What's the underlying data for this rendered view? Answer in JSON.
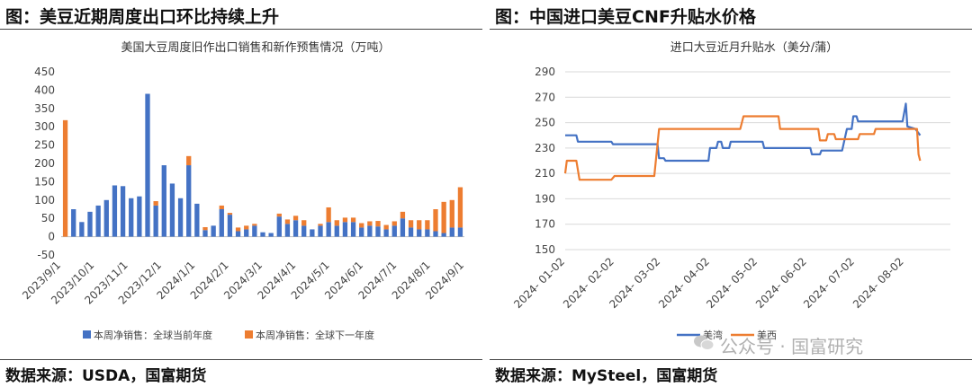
{
  "left": {
    "panel_title": "图：美豆近期周度出口环比持续上升",
    "source": "数据来源：USDA，国富期货",
    "chart_data": {
      "type": "bar",
      "stacked": true,
      "title": "美国大豆周度旧作出口销售和新作预售情况（万吨）",
      "ylim": [
        -50,
        450
      ],
      "yticks": [
        -50,
        0,
        50,
        100,
        150,
        200,
        250,
        300,
        350,
        400,
        450
      ],
      "grid": false,
      "legend_position": "bottom",
      "x_tick_labels": [
        "2023/9/1",
        "2023/10/1",
        "2023/11/1",
        "2023/12/1",
        "2024/1/1",
        "2024/2/1",
        "2024/3/1",
        "2024/4/1",
        "2024/5/1",
        "2024/6/1",
        "2024/7/1",
        "2024/8/1",
        "2024/9/1"
      ],
      "series": [
        {
          "name": "本周净销售：全球当前年度",
          "color": "#4472C4",
          "values": [
            0,
            75,
            40,
            68,
            85,
            100,
            140,
            138,
            105,
            110,
            390,
            85,
            195,
            145,
            105,
            195,
            90,
            18,
            30,
            75,
            60,
            15,
            20,
            30,
            12,
            10,
            55,
            35,
            45,
            30,
            20,
            30,
            40,
            30,
            40,
            40,
            25,
            30,
            28,
            20,
            30,
            50,
            25,
            20,
            20,
            15,
            10,
            25,
            25
          ]
        },
        {
          "name": "本周净销售：全球下一年度",
          "color": "#ED7D31",
          "values": [
            318,
            0,
            0,
            0,
            0,
            0,
            0,
            0,
            0,
            0,
            0,
            12,
            0,
            0,
            0,
            25,
            0,
            8,
            0,
            10,
            5,
            10,
            10,
            5,
            0,
            0,
            8,
            12,
            12,
            15,
            0,
            5,
            40,
            15,
            12,
            12,
            12,
            12,
            15,
            12,
            12,
            18,
            20,
            25,
            25,
            60,
            85,
            75,
            110
          ]
        }
      ]
    }
  },
  "right": {
    "panel_title": "图：中国进口美豆CNF升贴水价格",
    "source": "数据来源：MySteel，国富期货",
    "chart_data": {
      "type": "line",
      "title": "进口大豆近月升贴水（美分/蒲）",
      "ylim": [
        150,
        290
      ],
      "yticks": [
        150,
        170,
        190,
        210,
        230,
        250,
        270,
        290
      ],
      "grid": true,
      "legend_position": "bottom",
      "xlim": [
        "2024-01-02",
        "2024-08-31"
      ],
      "x_tick_labels": [
        "2024-01-02",
        "2024-02-02",
        "2024-03-02",
        "2024-04-02",
        "2024-05-02",
        "2024-06-02",
        "2024-07-02",
        "2024-08-02"
      ],
      "series": [
        {
          "name": "美湾",
          "color": "#4472C4",
          "points": [
            [
              "2024-01-02",
              240
            ],
            [
              "2024-01-09",
              240
            ],
            [
              "2024-01-10",
              235
            ],
            [
              "2024-01-31",
              235
            ],
            [
              "2024-02-01",
              233
            ],
            [
              "2024-02-29",
              233
            ],
            [
              "2024-03-01",
              222
            ],
            [
              "2024-03-04",
              222
            ],
            [
              "2024-03-05",
              220
            ],
            [
              "2024-04-01",
              220
            ],
            [
              "2024-04-02",
              230
            ],
            [
              "2024-04-06",
              230
            ],
            [
              "2024-04-07",
              235
            ],
            [
              "2024-04-09",
              235
            ],
            [
              "2024-04-10",
              230
            ],
            [
              "2024-04-14",
              230
            ],
            [
              "2024-04-15",
              235
            ],
            [
              "2024-05-05",
              235
            ],
            [
              "2024-05-06",
              230
            ],
            [
              "2024-06-04",
              230
            ],
            [
              "2024-06-05",
              225
            ],
            [
              "2024-06-10",
              225
            ],
            [
              "2024-06-11",
              228
            ],
            [
              "2024-06-24",
              228
            ],
            [
              "2024-06-27",
              245
            ],
            [
              "2024-06-30",
              245
            ],
            [
              "2024-07-01",
              255
            ],
            [
              "2024-07-03",
              255
            ],
            [
              "2024-07-04",
              251
            ],
            [
              "2024-07-31",
              251
            ],
            [
              "2024-08-01",
              251
            ],
            [
              "2024-08-03",
              265
            ],
            [
              "2024-08-04",
              247
            ],
            [
              "2024-08-09",
              245
            ],
            [
              "2024-08-12",
              240
            ]
          ]
        },
        {
          "name": "美西",
          "color": "#ED7D31",
          "points": [
            [
              "2024-01-02",
              210
            ],
            [
              "2024-01-03",
              220
            ],
            [
              "2024-01-09",
              220
            ],
            [
              "2024-01-11",
              205
            ],
            [
              "2024-01-31",
              205
            ],
            [
              "2024-02-02",
              208
            ],
            [
              "2024-02-27",
              208
            ],
            [
              "2024-03-01",
              245
            ],
            [
              "2024-04-21",
              245
            ],
            [
              "2024-04-23",
              255
            ],
            [
              "2024-05-15",
              255
            ],
            [
              "2024-05-16",
              245
            ],
            [
              "2024-06-09",
              245
            ],
            [
              "2024-06-10",
              236
            ],
            [
              "2024-06-14",
              236
            ],
            [
              "2024-06-15",
              241
            ],
            [
              "2024-06-19",
              241
            ],
            [
              "2024-06-20",
              237
            ],
            [
              "2024-07-04",
              237
            ],
            [
              "2024-07-05",
              241
            ],
            [
              "2024-07-14",
              241
            ],
            [
              "2024-07-15",
              245
            ],
            [
              "2024-08-10",
              245
            ],
            [
              "2024-08-11",
              225
            ],
            [
              "2024-08-12",
              220
            ]
          ]
        }
      ]
    }
  },
  "watermark": "公众号 · 国富研究"
}
